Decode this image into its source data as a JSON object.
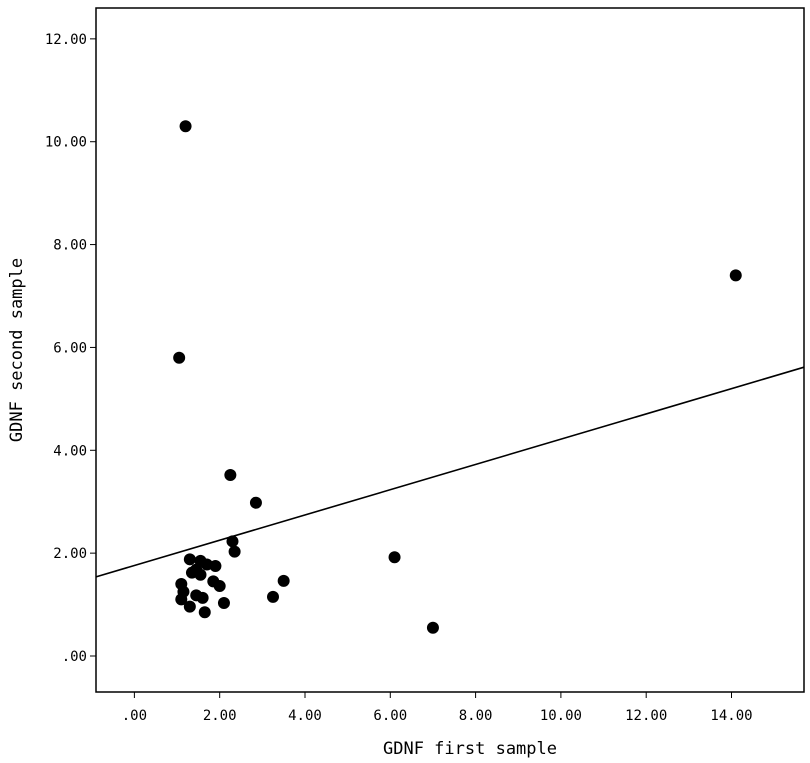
{
  "chart_data": {
    "type": "scatter",
    "title": "",
    "xlabel": "GDNF first sample",
    "ylabel": "GDNF second sample",
    "xlim": [
      -0.9,
      15.7
    ],
    "ylim": [
      -0.7,
      12.6
    ],
    "x_ticks": [
      0,
      2,
      4,
      6,
      8,
      10,
      12,
      14
    ],
    "x_tick_labels": [
      ".00",
      "2.00",
      "4.00",
      "6.00",
      "8.00",
      "10.00",
      "12.00",
      "14.00"
    ],
    "y_ticks": [
      0,
      2,
      4,
      6,
      8,
      10,
      12
    ],
    "y_tick_labels": [
      ".00",
      "2.00",
      "4.00",
      "6.00",
      "8.00",
      "10.00",
      "12.00"
    ],
    "grid": false,
    "legend": "none",
    "marker_color": "#000000",
    "points": [
      {
        "x": 1.2,
        "y": 10.3
      },
      {
        "x": 14.1,
        "y": 7.4
      },
      {
        "x": 1.05,
        "y": 5.8
      },
      {
        "x": 2.25,
        "y": 3.52
      },
      {
        "x": 2.85,
        "y": 2.98
      },
      {
        "x": 2.3,
        "y": 2.23
      },
      {
        "x": 2.35,
        "y": 2.03
      },
      {
        "x": 6.1,
        "y": 1.92
      },
      {
        "x": 1.3,
        "y": 1.88
      },
      {
        "x": 1.55,
        "y": 1.85
      },
      {
        "x": 1.7,
        "y": 1.78
      },
      {
        "x": 1.9,
        "y": 1.75
      },
      {
        "x": 1.45,
        "y": 1.68
      },
      {
        "x": 1.35,
        "y": 1.62
      },
      {
        "x": 1.55,
        "y": 1.58
      },
      {
        "x": 1.1,
        "y": 1.4
      },
      {
        "x": 1.85,
        "y": 1.45
      },
      {
        "x": 2.0,
        "y": 1.36
      },
      {
        "x": 3.5,
        "y": 1.46
      },
      {
        "x": 1.15,
        "y": 1.25
      },
      {
        "x": 1.45,
        "y": 1.18
      },
      {
        "x": 1.6,
        "y": 1.13
      },
      {
        "x": 3.25,
        "y": 1.15
      },
      {
        "x": 1.1,
        "y": 1.1
      },
      {
        "x": 2.1,
        "y": 1.03
      },
      {
        "x": 1.3,
        "y": 0.96
      },
      {
        "x": 1.65,
        "y": 0.85
      },
      {
        "x": 7.0,
        "y": 0.55
      }
    ],
    "fit_line": {
      "intercept": 1.76,
      "slope": 0.2456
    }
  }
}
